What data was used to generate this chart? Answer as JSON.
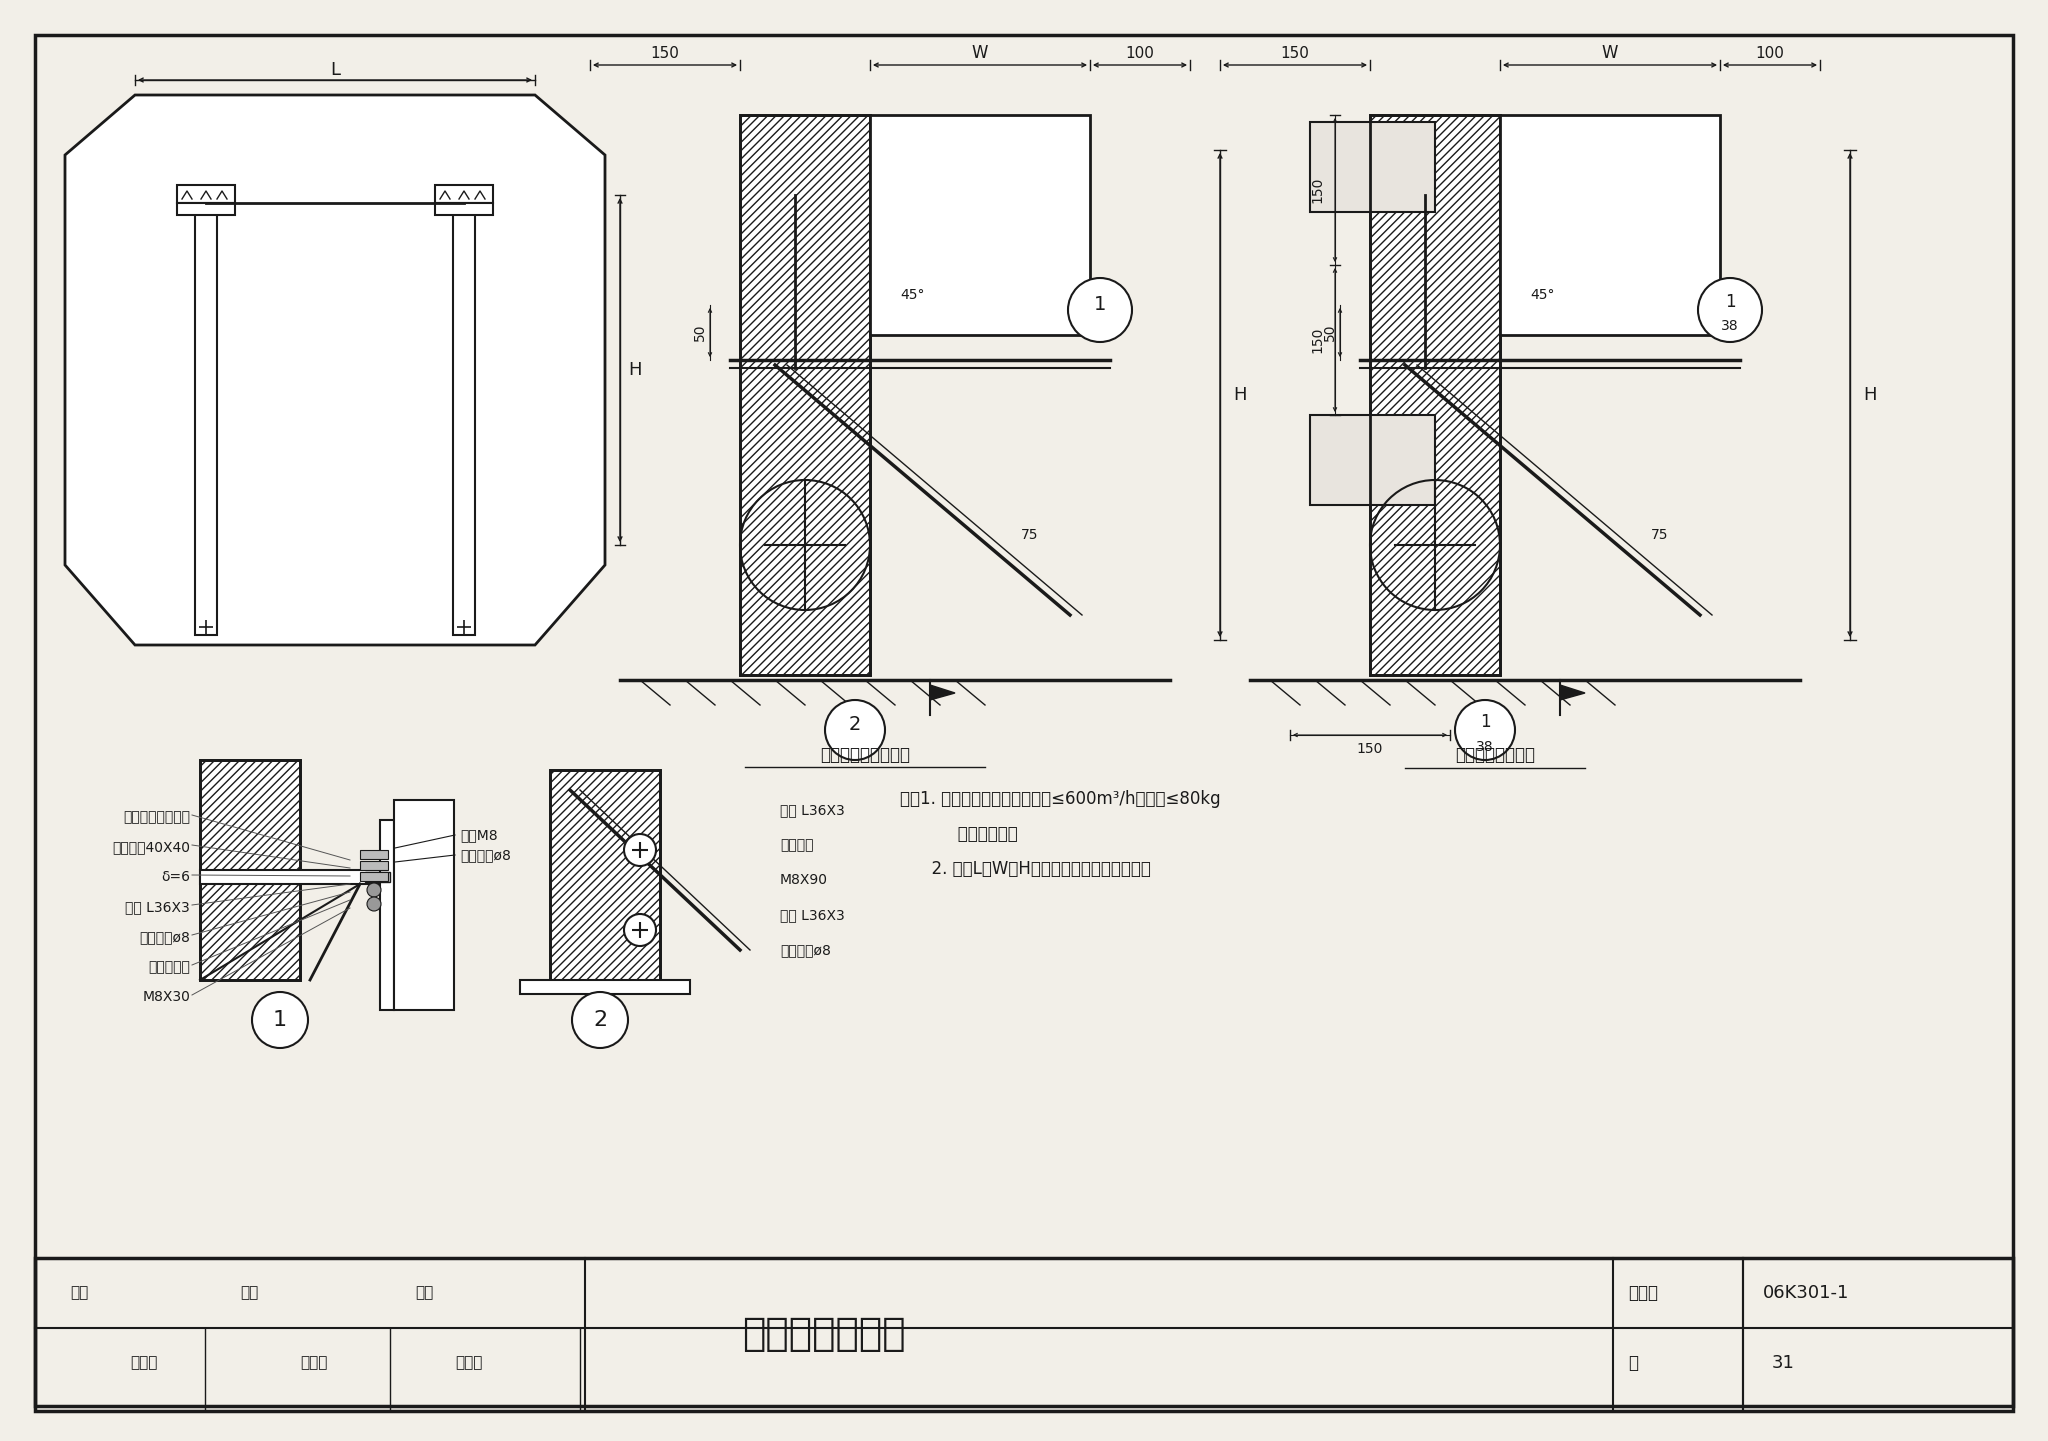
{
  "title": "室外壁挂式安装",
  "figure_number": "06K301-1",
  "page_number": "31",
  "bg_color": "#f2efe8",
  "paper_color": "#f5f2ec",
  "line_color": "#1a1a1a",
  "label_concrete": "钢筋混凝土墙上安装",
  "label_brick": "砖墙或轻质砌块墙",
  "note_lines": [
    "注：1. 本安装方式适用于新风量≤600m³/h，重量≤80kg",
    "           的所有机型。",
    "      2. 图中L、W和H分别为机组的长、宽和高。"
  ],
  "labels_left1": "随机配备的安装件",
  "labels_left2": "橡胶垫片40X40",
  "labels_left3": "δ=6",
  "labels_left4": "槽架 L36X3",
  "labels_left5": "弹簧垫圈ø8",
  "labels_left6": "螺栓、螺帽",
  "labels_left7": "M8X30",
  "labels_tr1": "螺母M8",
  "labels_tr2": "弹簧垫圈ø8",
  "labels_right1": "斜撑 L36X3",
  "labels_right2": "膨胀螺栓",
  "labels_right3": "M8X90",
  "labels_right4": "侧架 L36X3",
  "labels_right5": "弹簧垫圈ø8",
  "footer_shenhe": "审核",
  "footer_name1": "李运学",
  "footer_jiaodui": "校对",
  "footer_name2": "郁永庆",
  "footer_sheji": "设计",
  "footer_name3": "栾长辉",
  "footer_ye": "页",
  "footer_tujihao": "图集号"
}
